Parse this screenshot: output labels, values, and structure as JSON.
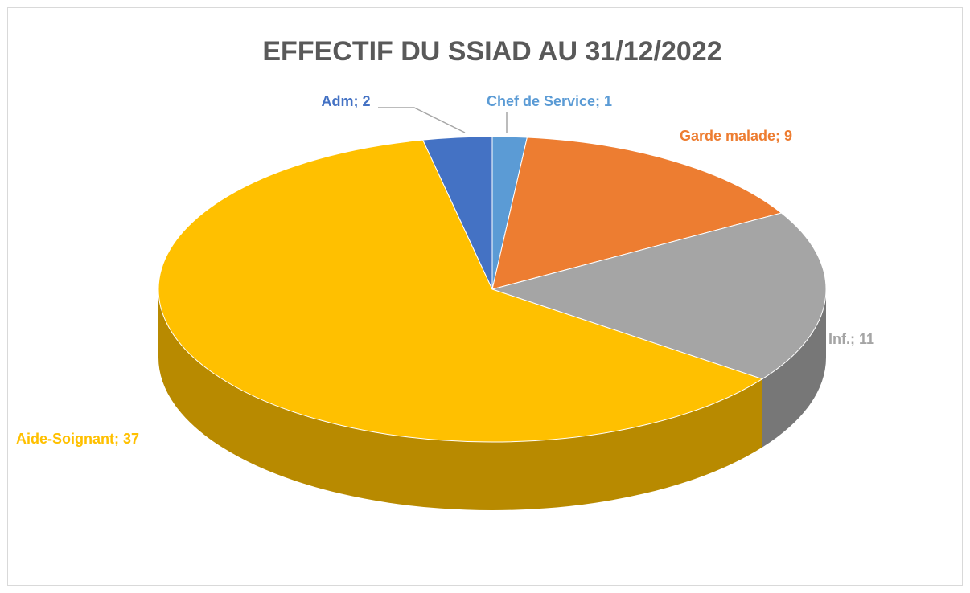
{
  "chart_data": {
    "type": "pie",
    "title": "EFFECTIF DU SSIAD AU 31/12/2022",
    "values": [
      1,
      9,
      11,
      37,
      2
    ],
    "value_labels": [
      "Chef de Service; 1",
      "Garde malade; 9",
      "Inf.; 11",
      "Aide-Soignant; 37",
      "Adm; 2"
    ],
    "colors": [
      "#5b9bd5",
      "#ed7d31",
      "#a5a5a5",
      "#ffc000",
      "#4472c4"
    ]
  }
}
